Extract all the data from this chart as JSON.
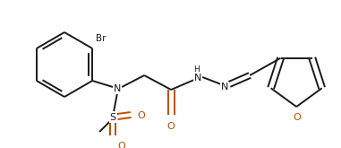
{
  "bg_color": "#ffffff",
  "line_color": "#1a1a1a",
  "text_color": "#1a1a1a",
  "o_color": "#b85000",
  "line_width": 1.4,
  "figsize": [
    3.81,
    1.65
  ],
  "dpi": 100,
  "xlim": [
    0,
    381
  ],
  "ylim": [
    0,
    165
  ]
}
